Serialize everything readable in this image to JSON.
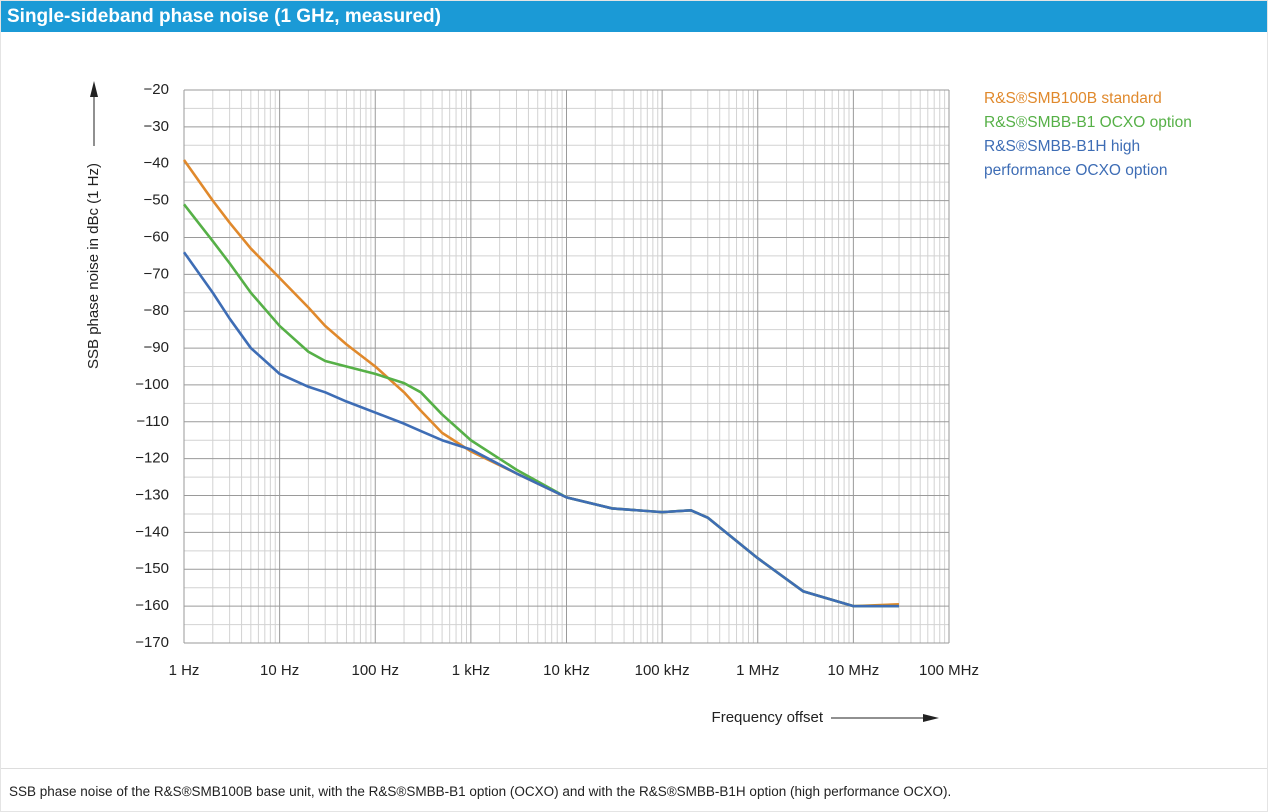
{
  "header": {
    "title": "Single-sideband phase noise (1 GHz, measured)"
  },
  "chart_data": {
    "type": "line",
    "x_label": "Frequency offset",
    "y_label": "SSB phase noise in dBc (1 Hz)",
    "x": [
      1,
      2,
      3,
      5,
      10,
      20,
      30,
      50,
      100,
      200,
      300,
      500,
      1000,
      3000,
      10000,
      30000,
      100000,
      200000,
      300000,
      1000000,
      3000000,
      10000000,
      30000000
    ],
    "series": [
      {
        "name": "R&S®SMB100B standard",
        "color": "#e0892c",
        "values": [
          -39,
          -50,
          -56,
          -63,
          -71,
          -79,
          -84,
          -89,
          -95,
          -102,
          -107,
          -113,
          -118,
          -124,
          -130.5,
          -133.5,
          -134.5,
          -134,
          -136,
          -147,
          -156,
          -160,
          -159.5
        ]
      },
      {
        "name": "R&S®SMBB-B1 OCXO option",
        "color": "#56b047",
        "values": [
          -51,
          -61,
          -67,
          -75,
          -84,
          -91,
          -93.5,
          -95,
          -97,
          -99.5,
          -102,
          -108,
          -115,
          -123,
          -130.5,
          -133.5,
          -134.5,
          -134,
          -136,
          -147,
          -156,
          -160,
          -160
        ]
      },
      {
        "name": "R&S®SMBB-B1H high performance OCXO option",
        "color": "#3e6db5",
        "values": [
          -64,
          -75,
          -82,
          -90,
          -97,
          -100.5,
          -102,
          -104.5,
          -107.5,
          -110.5,
          -112.5,
          -115,
          -117.5,
          -124,
          -130.5,
          -133.5,
          -134.5,
          -134,
          -136,
          -147,
          -156,
          -160,
          -160
        ]
      }
    ],
    "x_log": true,
    "grid": true,
    "minor_grid": true,
    "xlim": [
      1,
      100000000
    ],
    "ylim": [
      -170,
      -20
    ],
    "xticks": [
      {
        "value": 1,
        "label": "1 Hz"
      },
      {
        "value": 10,
        "label": "10 Hz"
      },
      {
        "value": 100,
        "label": "100 Hz"
      },
      {
        "value": 1000,
        "label": "1 kHz"
      },
      {
        "value": 10000,
        "label": "10 kHz"
      },
      {
        "value": 100000,
        "label": "100 kHz"
      },
      {
        "value": 1000000,
        "label": "1 MHz"
      },
      {
        "value": 10000000,
        "label": "10 MHz"
      },
      {
        "value": 100000000,
        "label": "100 MHz"
      }
    ],
    "yticks": [
      {
        "value": -20,
        "label": "−20"
      },
      {
        "value": -30,
        "label": "−30"
      },
      {
        "value": -40,
        "label": "−40"
      },
      {
        "value": -50,
        "label": "−50"
      },
      {
        "value": -60,
        "label": "−60"
      },
      {
        "value": -70,
        "label": "−70"
      },
      {
        "value": -80,
        "label": "−80"
      },
      {
        "value": -90,
        "label": "−90"
      },
      {
        "value": -100,
        "label": "−100"
      },
      {
        "value": -110,
        "label": "−110"
      },
      {
        "value": -120,
        "label": "−120"
      },
      {
        "value": -130,
        "label": "−130"
      },
      {
        "value": -140,
        "label": "−140"
      },
      {
        "value": -150,
        "label": "−150"
      },
      {
        "value": -160,
        "label": "−160"
      },
      {
        "value": -170,
        "label": "−170"
      }
    ]
  },
  "caption": "SSB phase noise of the R&S®SMB100B base unit, with the R&S®SMBB-B1 option (OCXO) and with the R&S®SMBB-B1H option (high performance OCXO)."
}
